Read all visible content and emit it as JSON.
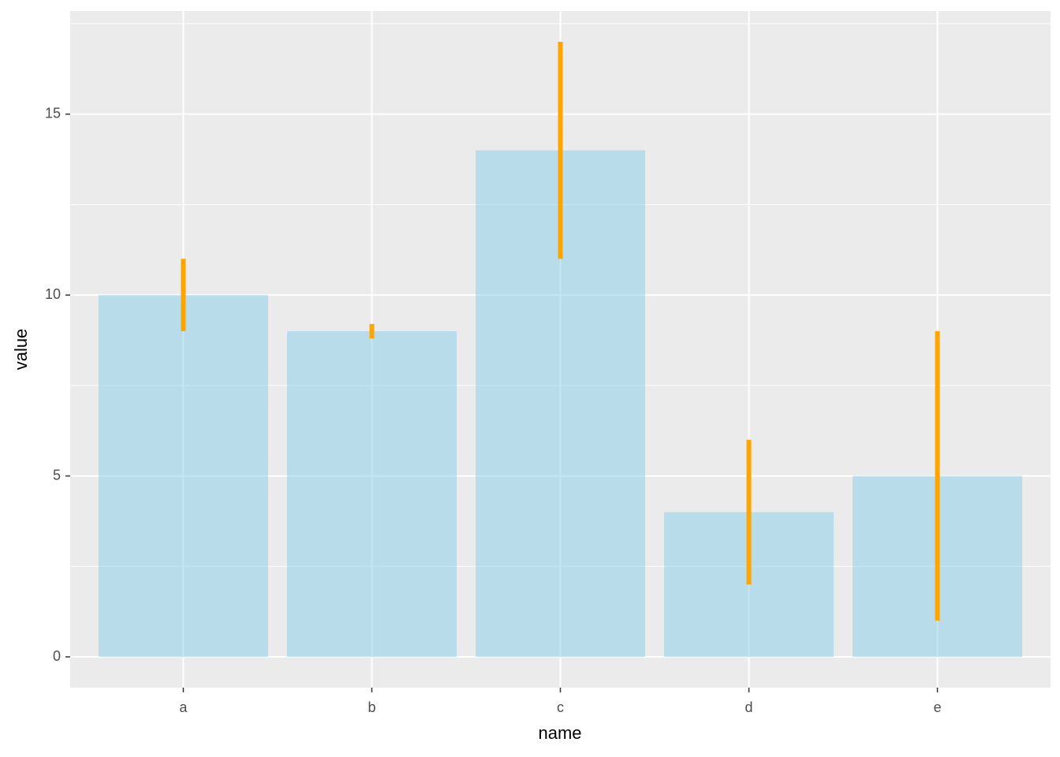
{
  "chart_data": {
    "type": "bar",
    "x_label": "name",
    "y_label": "value",
    "categories": [
      "a",
      "b",
      "c",
      "d",
      "e"
    ],
    "values": [
      10,
      9,
      14,
      4,
      5
    ],
    "errors": [
      1,
      0.2,
      3,
      2,
      4
    ],
    "color": "#87ceeb",
    "bar_alpha": 0.5,
    "error_color": "#ffa500",
    "ylim": [
      -0.85,
      17.85
    ],
    "yticks": [
      0,
      5,
      10,
      15
    ],
    "minor_yticks": [
      2.5,
      7.5,
      12.5,
      17.5
    ],
    "grid": true
  }
}
